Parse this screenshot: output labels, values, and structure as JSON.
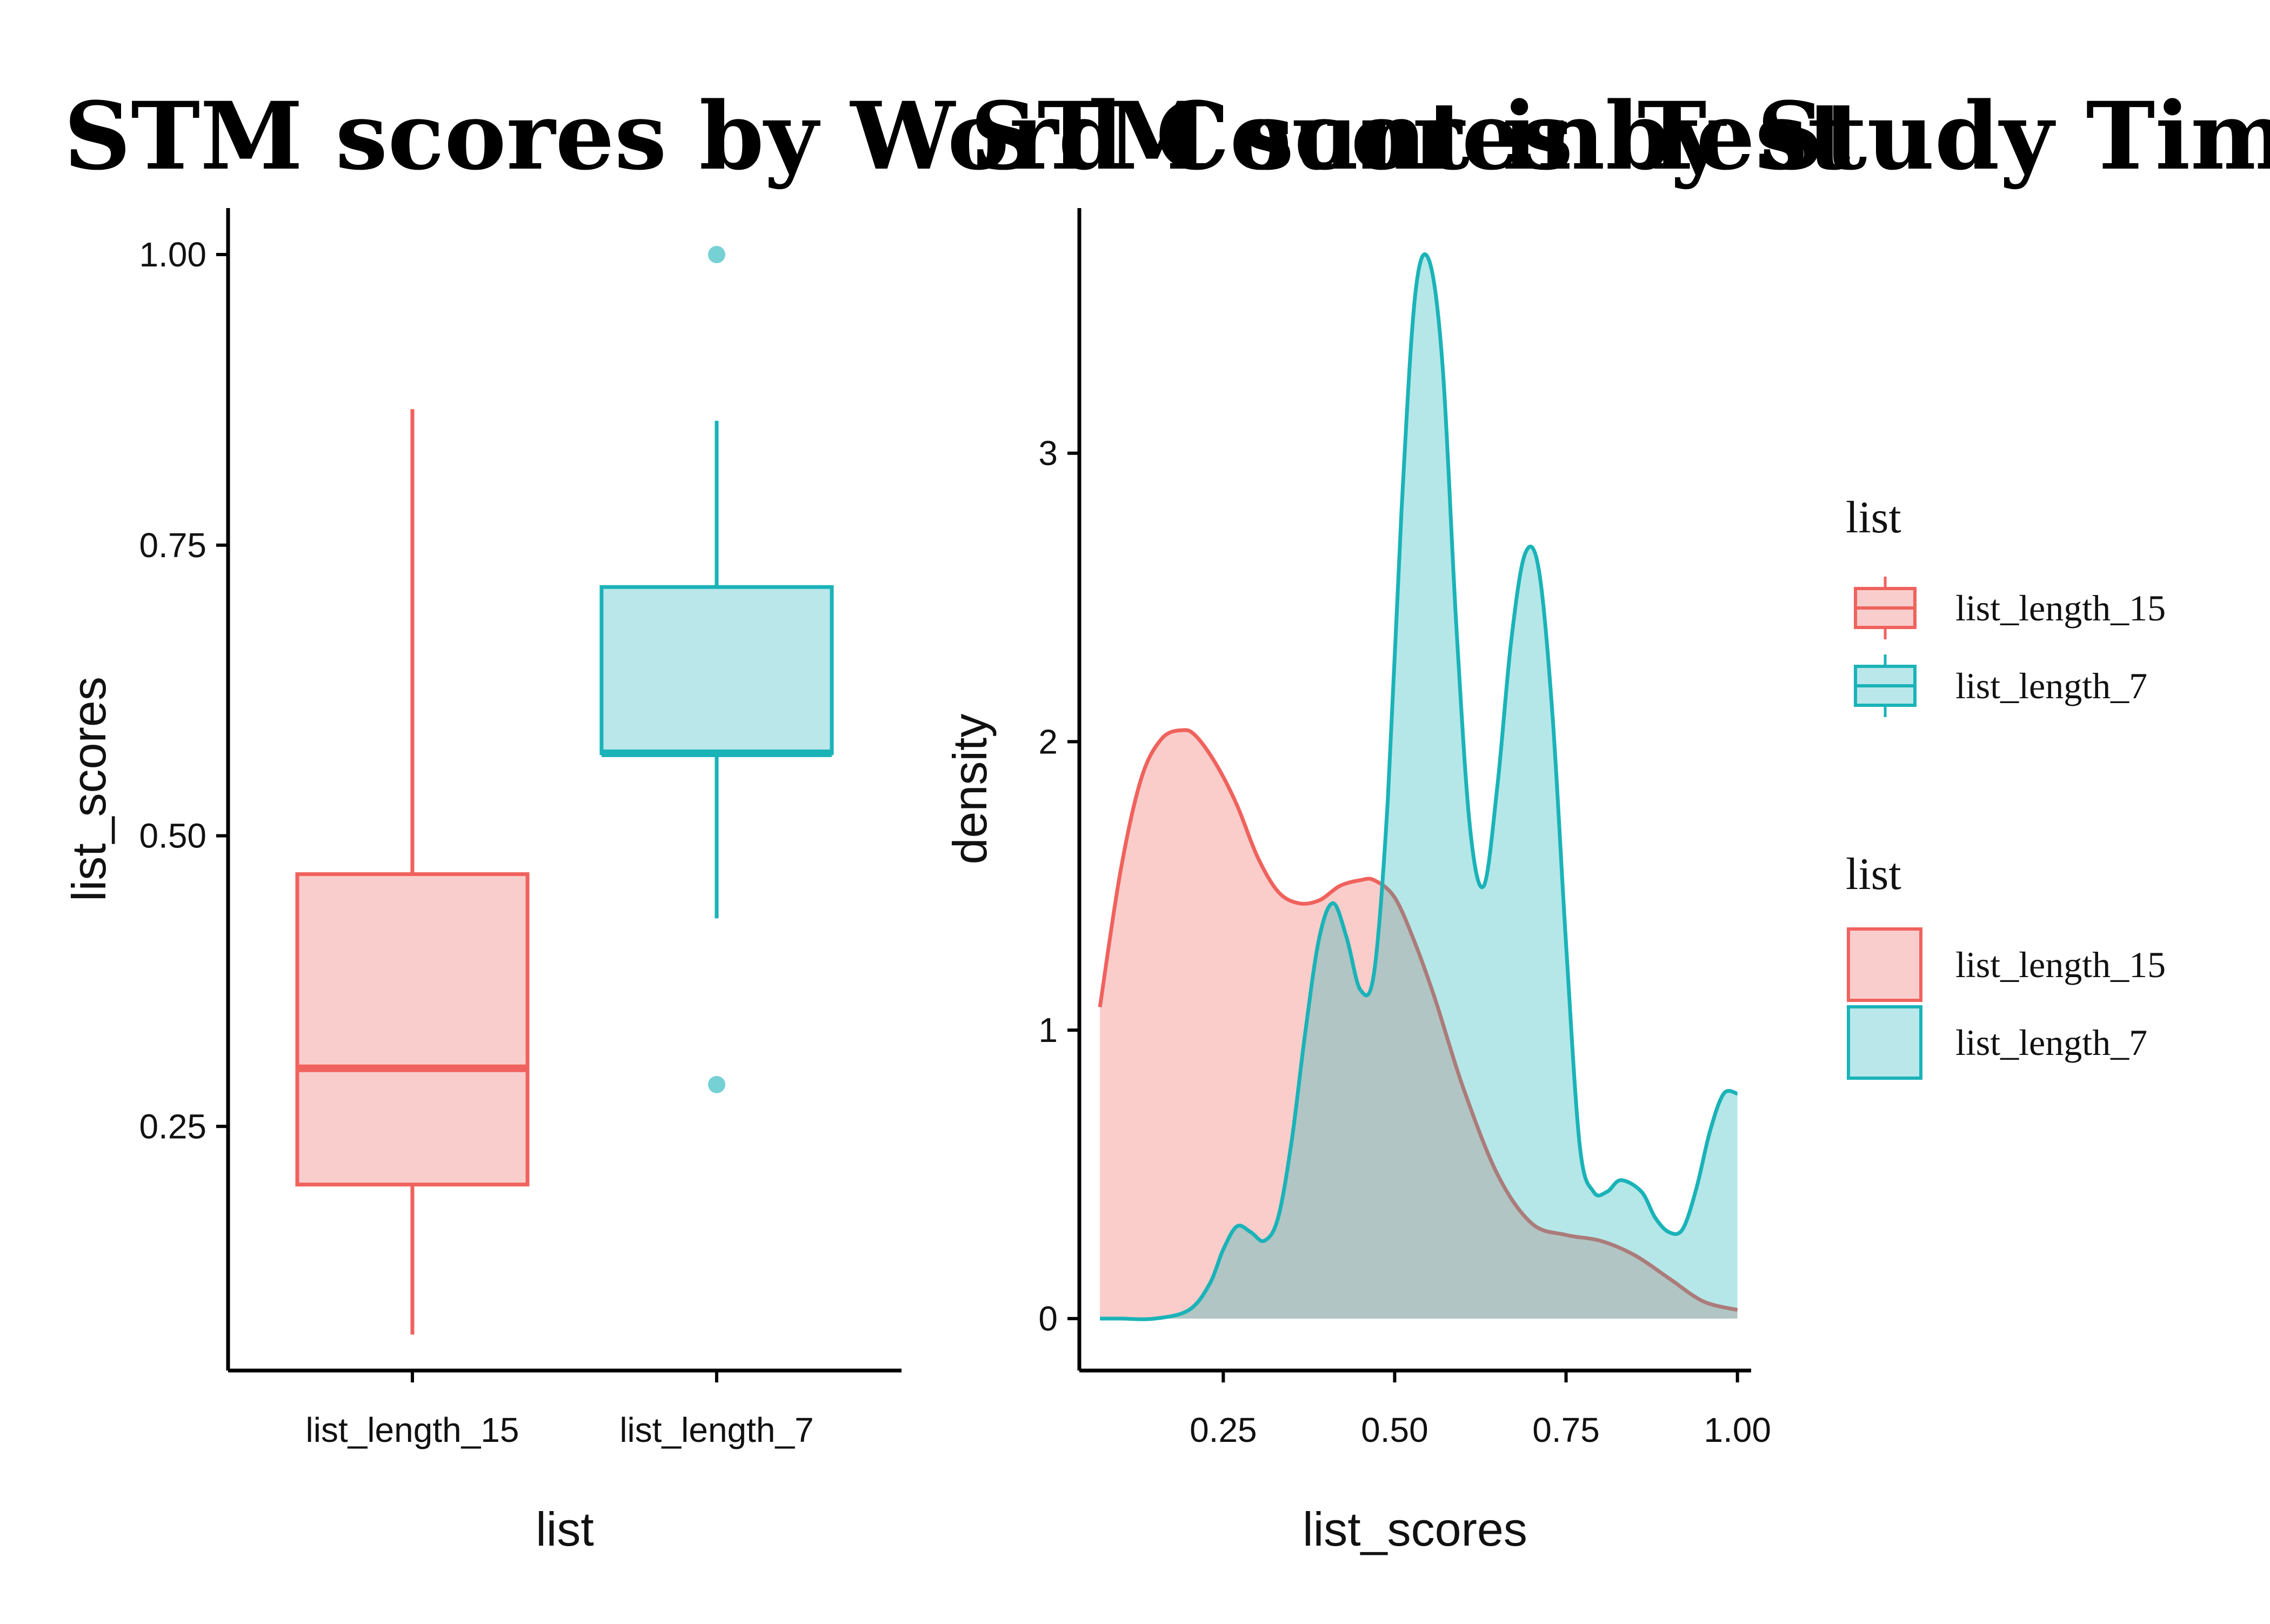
{
  "titles": {
    "left": "STM scores by Word Count in Test",
    "right": "STM scores by Study Time in Test"
  },
  "colors": {
    "list_length_15_stroke": "#F0625D",
    "list_length_15_fill": "#FACDCD",
    "list_length_7_stroke": "#1AB3B8",
    "list_length_7_fill": "#BAE7EA",
    "overlap_fill": "#B8C7C7",
    "axis": "#000000"
  },
  "legends": [
    {
      "title": "list",
      "kind": "boxplot",
      "items": [
        "list_length_15",
        "list_length_7"
      ]
    },
    {
      "title": "list",
      "kind": "fill",
      "items": [
        "list_length_15",
        "list_length_7"
      ]
    }
  ],
  "chart_data": [
    {
      "type": "box",
      "xlabel": "list",
      "ylabel": "list_scores",
      "categories": [
        "list_length_15",
        "list_length_7"
      ],
      "ylim": [
        0.04,
        1.04
      ],
      "yticks": [
        0.25,
        0.5,
        0.75,
        1.0
      ],
      "ytick_labels": [
        "0.25",
        "0.50",
        "0.75",
        "1.00"
      ],
      "grid": false,
      "legend": "right",
      "series": [
        {
          "name": "list_length_15",
          "min": 0.071,
          "q1": 0.2,
          "median": 0.3,
          "q3": 0.467,
          "max": 0.867,
          "outliers": []
        },
        {
          "name": "list_length_7",
          "min": 0.429,
          "q1": 0.571,
          "median": 0.571,
          "q3": 0.714,
          "max": 0.857,
          "outliers": [
            0.286,
            1.0
          ]
        }
      ]
    },
    {
      "type": "area",
      "xlabel": "list_scores",
      "ylabel": "density",
      "xlim": [
        0.04,
        1.02
      ],
      "ylim": [
        -0.18,
        3.85
      ],
      "xticks": [
        0.25,
        0.5,
        0.75,
        1.0
      ],
      "xtick_labels": [
        "0.25",
        "0.50",
        "0.75",
        "1.00"
      ],
      "yticks": [
        0,
        1,
        2,
        3
      ],
      "ytick_labels": [
        "0",
        "1",
        "2",
        "3"
      ],
      "grid": false,
      "legend": "right",
      "series": [
        {
          "name": "list_length_15",
          "x": [
            0.07,
            0.1,
            0.13,
            0.16,
            0.19,
            0.21,
            0.24,
            0.27,
            0.3,
            0.33,
            0.36,
            0.39,
            0.42,
            0.45,
            0.47,
            0.5,
            0.53,
            0.56,
            0.6,
            0.65,
            0.7,
            0.75,
            0.8,
            0.85,
            0.9,
            0.95,
            1.0
          ],
          "y": [
            1.08,
            1.55,
            1.87,
            2.01,
            2.04,
            2.02,
            1.92,
            1.78,
            1.6,
            1.48,
            1.44,
            1.45,
            1.5,
            1.52,
            1.52,
            1.46,
            1.3,
            1.1,
            0.8,
            0.5,
            0.33,
            0.29,
            0.27,
            0.22,
            0.14,
            0.06,
            0.03
          ]
        },
        {
          "name": "list_length_7",
          "x": [
            0.07,
            0.1,
            0.15,
            0.2,
            0.23,
            0.25,
            0.27,
            0.29,
            0.31,
            0.33,
            0.35,
            0.37,
            0.39,
            0.41,
            0.43,
            0.45,
            0.47,
            0.49,
            0.51,
            0.53,
            0.55,
            0.57,
            0.59,
            0.61,
            0.63,
            0.65,
            0.67,
            0.69,
            0.71,
            0.73,
            0.75,
            0.77,
            0.79,
            0.81,
            0.83,
            0.86,
            0.88,
            0.9,
            0.92,
            0.94,
            0.96,
            0.98,
            1.0
          ],
          "y": [
            0.0,
            0.0,
            0.0,
            0.03,
            0.12,
            0.24,
            0.32,
            0.3,
            0.27,
            0.35,
            0.62,
            1.0,
            1.32,
            1.44,
            1.32,
            1.14,
            1.2,
            1.8,
            2.8,
            3.55,
            3.67,
            3.3,
            2.4,
            1.7,
            1.5,
            1.85,
            2.35,
            2.65,
            2.6,
            2.1,
            1.3,
            0.6,
            0.44,
            0.44,
            0.48,
            0.44,
            0.35,
            0.3,
            0.31,
            0.45,
            0.65,
            0.78,
            0.78
          ]
        }
      ]
    }
  ]
}
